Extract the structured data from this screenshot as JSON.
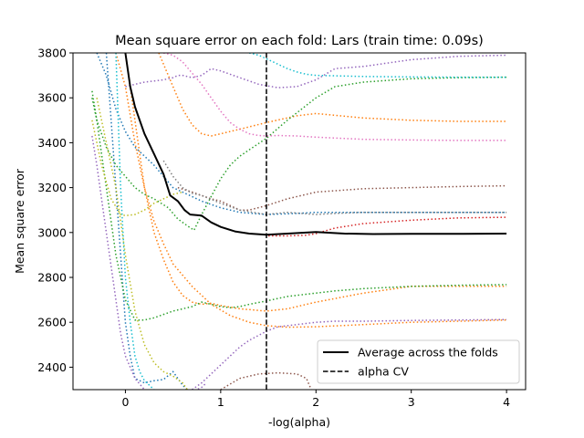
{
  "chart_data": {
    "type": "line",
    "title": "Mean square error on each fold: Lars (train time: 0.09s)",
    "xlabel": "-log(alpha)",
    "ylabel": "Mean square error",
    "xlim": [
      -0.55,
      4.2
    ],
    "ylim": [
      2300,
      3800
    ],
    "xticks": [
      0,
      1,
      2,
      3,
      4
    ],
    "yticks": [
      2400,
      2600,
      2800,
      3000,
      3200,
      3400,
      3600,
      3800
    ],
    "grid": false,
    "legend_position": "lower-right",
    "legend": [
      {
        "label": "Average across the folds",
        "style": "solid",
        "color": "#000000"
      },
      {
        "label": "alpha CV",
        "style": "dashed",
        "color": "#000000"
      }
    ],
    "alpha_cv": 1.48,
    "average": {
      "x": [
        0.0,
        0.05,
        0.1,
        0.2,
        0.3,
        0.4,
        0.47,
        0.55,
        0.62,
        0.68,
        0.8,
        0.9,
        1.0,
        1.15,
        1.3,
        1.48,
        1.7,
        2.0,
        2.3,
        2.6,
        3.0,
        3.5,
        4.0
      ],
      "y": [
        3800,
        3650,
        3560,
        3440,
        3350,
        3260,
        3165,
        3140,
        3100,
        3080,
        3075,
        3045,
        3025,
        3005,
        2995,
        2990,
        2995,
        3002,
        2995,
        2993,
        2994,
        2994,
        2995
      ]
    },
    "series": [
      {
        "color": "#1f77b4",
        "x": [
          -0.3,
          -0.2,
          -0.1,
          0.0,
          0.1,
          0.3,
          0.5,
          0.7,
          0.8,
          1.0,
          1.2,
          1.48,
          1.8,
          2.0,
          2.5,
          3.0,
          3.5,
          4.0
        ],
        "y": [
          3800,
          3700,
          3550,
          3450,
          3380,
          3300,
          3200,
          3160,
          3140,
          3110,
          3090,
          3080,
          3085,
          3090,
          3090,
          3090,
          3090,
          3090
        ]
      },
      {
        "color": "#1f77b4",
        "x": [
          -0.2,
          -0.15,
          -0.05,
          0.0,
          0.05,
          0.1,
          0.2,
          0.3,
          0.4,
          0.5,
          0.55,
          0.6,
          0.65
        ],
        "y": [
          3800,
          3500,
          2900,
          2600,
          2450,
          2350,
          2330,
          2340,
          2345,
          2380,
          2350,
          2320,
          2300
        ]
      },
      {
        "color": "#ff7f0e",
        "x": [
          0.35,
          0.4,
          0.5,
          0.6,
          0.7,
          0.8,
          0.9,
          1.0,
          1.2,
          1.48,
          1.8,
          2.0,
          2.5,
          3.0,
          3.5,
          4.0
        ],
        "y": [
          3800,
          3750,
          3650,
          3550,
          3480,
          3440,
          3430,
          3440,
          3460,
          3490,
          3520,
          3530,
          3510,
          3500,
          3495,
          3495
        ]
      },
      {
        "color": "#ff7f0e",
        "x": [
          -0.1,
          0.0,
          0.1,
          0.2,
          0.3,
          0.4,
          0.5,
          0.7,
          0.9,
          1.1,
          1.3,
          1.48,
          1.7,
          2.0,
          2.5,
          3.0,
          3.5,
          4.0
        ],
        "y": [
          3800,
          3650,
          3400,
          3200,
          3050,
          2950,
          2860,
          2760,
          2680,
          2630,
          2600,
          2585,
          2578,
          2580,
          2590,
          2600,
          2605,
          2610
        ]
      },
      {
        "color": "#ff7f0e",
        "x": [
          0.0,
          0.1,
          0.2,
          0.3,
          0.4,
          0.5,
          0.6,
          0.7,
          0.8,
          0.9,
          1.0,
          1.2,
          1.48,
          1.7,
          2.0,
          2.5,
          3.0,
          3.5,
          4.0
        ],
        "y": [
          3800,
          3500,
          3200,
          3000,
          2880,
          2780,
          2720,
          2690,
          2680,
          2685,
          2675,
          2660,
          2650,
          2660,
          2690,
          2730,
          2760,
          2760,
          2760
        ]
      },
      {
        "color": "#2ca02c",
        "x": [
          -0.35,
          -0.3,
          -0.2,
          -0.1,
          0.0,
          0.1,
          0.2,
          0.3,
          0.5,
          0.7,
          0.8,
          0.9,
          1.0,
          1.1,
          1.2,
          1.3,
          1.48,
          1.7,
          2.0,
          2.2,
          2.5,
          3.0,
          3.5,
          4.0
        ],
        "y": [
          3630,
          3500,
          3200,
          2900,
          2700,
          2610,
          2610,
          2620,
          2650,
          2670,
          2690,
          2680,
          2670,
          2665,
          2670,
          2680,
          2695,
          2715,
          2730,
          2740,
          2750,
          2760,
          2765,
          2768
        ]
      },
      {
        "color": "#2ca02c",
        "x": [
          -0.35,
          -0.3,
          -0.2,
          -0.1,
          0.0,
          0.1,
          0.2,
          0.3,
          0.45,
          0.55,
          0.65,
          0.72,
          0.8,
          0.9,
          1.0,
          1.1,
          1.2,
          1.48,
          1.7,
          2.0,
          2.2,
          2.5,
          3.0,
          3.5,
          4.0
        ],
        "y": [
          3600,
          3500,
          3380,
          3300,
          3250,
          3200,
          3170,
          3150,
          3110,
          3060,
          3030,
          3010,
          3080,
          3160,
          3240,
          3300,
          3340,
          3420,
          3500,
          3600,
          3650,
          3670,
          3685,
          3690,
          3692
        ]
      },
      {
        "color": "#d62728",
        "x": [
          1.5,
          1.7,
          1.9,
          2.0,
          2.2,
          2.5,
          3.0,
          3.5,
          4.0
        ],
        "y": [
          2985,
          2985,
          2988,
          2995,
          3020,
          3040,
          3055,
          3065,
          3068
        ]
      },
      {
        "color": "#9467bd",
        "x": [
          0.0,
          0.2,
          0.4,
          0.5,
          0.55,
          0.6,
          0.7,
          0.8,
          0.9,
          1.0,
          1.2,
          1.4,
          1.6,
          1.8,
          2.0,
          2.2,
          2.5,
          3.0,
          3.5,
          4.0
        ],
        "y": [
          3650,
          3670,
          3680,
          3690,
          3700,
          3700,
          3690,
          3700,
          3730,
          3720,
          3690,
          3660,
          3645,
          3650,
          3680,
          3730,
          3740,
          3770,
          3785,
          3790
        ]
      },
      {
        "color": "#9467bd",
        "x": [
          -0.35,
          -0.3,
          -0.2,
          -0.1,
          -0.05,
          0.0,
          0.05,
          0.1,
          0.2,
          0.3,
          0.4,
          0.5,
          0.6,
          0.7,
          0.8,
          0.85
        ],
        "y": [
          3430,
          3300,
          3000,
          2700,
          2550,
          2450,
          2400,
          2350,
          2300,
          2280,
          2270,
          2270,
          2280,
          2290,
          2310,
          2330
        ]
      },
      {
        "color": "#9467bd",
        "x": [
          0.7,
          0.8,
          0.9,
          1.0,
          1.1,
          1.2,
          1.3,
          1.48,
          1.6,
          1.8,
          2.0,
          2.2,
          2.5,
          3.0,
          3.5,
          4.0
        ],
        "y": [
          2300,
          2330,
          2370,
          2410,
          2450,
          2490,
          2520,
          2560,
          2580,
          2590,
          2600,
          2605,
          2605,
          2608,
          2610,
          2612
        ]
      },
      {
        "color": "#8c564b",
        "x": [
          0.55,
          0.7,
          0.9,
          1.0,
          1.1,
          1.2,
          1.3,
          1.48,
          1.7,
          2.0,
          2.5,
          3.0,
          3.5,
          4.0
        ],
        "y": [
          3200,
          3180,
          3150,
          3140,
          3120,
          3100,
          3100,
          3120,
          3150,
          3180,
          3195,
          3200,
          3205,
          3208
        ]
      },
      {
        "color": "#8c564b",
        "x": [
          1.0,
          1.2,
          1.4,
          1.6,
          1.8,
          1.9,
          1.95
        ],
        "y": [
          2300,
          2350,
          2370,
          2375,
          2370,
          2350,
          2300
        ]
      },
      {
        "color": "#e377c2",
        "x": [
          0.4,
          0.5,
          0.6,
          0.7,
          0.8,
          0.9,
          1.0,
          1.1,
          1.2,
          1.3,
          1.4,
          1.48,
          1.6,
          1.8,
          2.0,
          2.5,
          3.0,
          3.5,
          4.0
        ],
        "y": [
          3800,
          3790,
          3760,
          3710,
          3660,
          3600,
          3540,
          3490,
          3460,
          3440,
          3432,
          3430,
          3432,
          3430,
          3425,
          3415,
          3412,
          3410,
          3410
        ]
      },
      {
        "color": "#7f7f7f",
        "x": [
          0.4,
          0.5,
          0.6,
          0.7,
          0.8,
          1.0,
          1.2,
          1.48,
          1.7,
          2.0,
          2.2,
          2.5,
          3.0,
          3.5,
          4.0
        ],
        "y": [
          3320,
          3250,
          3200,
          3175,
          3165,
          3130,
          3100,
          3080,
          3090,
          3080,
          3085,
          3090,
          3090,
          3090,
          3090
        ]
      },
      {
        "color": "#bcbd22",
        "x": [
          -0.3,
          -0.2,
          -0.1,
          0.0,
          0.1,
          0.2,
          0.3,
          0.4,
          0.5,
          0.6,
          0.65
        ],
        "y": [
          3600,
          3400,
          3200,
          2900,
          2650,
          2500,
          2420,
          2380,
          2360,
          2330,
          2300
        ]
      },
      {
        "color": "#bcbd22",
        "x": [
          -0.35,
          -0.25,
          -0.15,
          -0.05,
          0.0,
          0.1,
          0.2,
          0.3,
          0.4,
          0.5,
          0.6
        ],
        "y": [
          3500,
          3300,
          3150,
          3080,
          3075,
          3080,
          3100,
          3130,
          3150,
          3170,
          3180
        ]
      },
      {
        "color": "#17becf",
        "x": [
          -0.1,
          -0.05,
          0.0,
          0.05,
          0.1,
          0.15,
          0.2,
          0.3
        ],
        "y": [
          3800,
          3200,
          2800,
          2600,
          2450,
          2380,
          2340,
          2300
        ]
      },
      {
        "color": "#17becf",
        "x": [
          1.3,
          1.4,
          1.5,
          1.6,
          1.7,
          1.8,
          1.9,
          2.0,
          2.5,
          3.0,
          3.5,
          4.0
        ],
        "y": [
          3800,
          3790,
          3770,
          3750,
          3730,
          3715,
          3705,
          3700,
          3695,
          3693,
          3692,
          3692
        ]
      }
    ]
  }
}
